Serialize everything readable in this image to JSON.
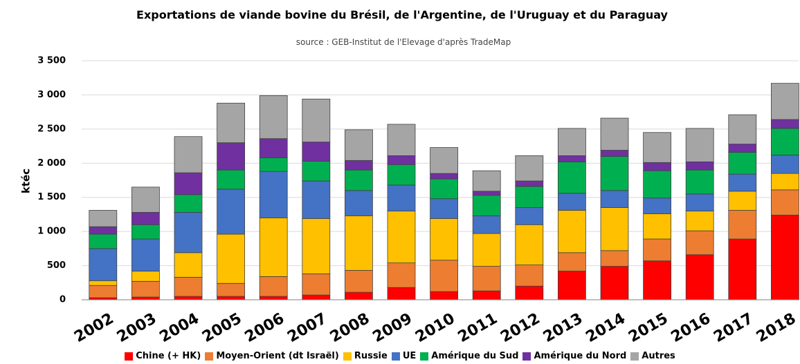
{
  "chart_data": {
    "type": "stacked_bar",
    "title": "Exportations de viande bovine du Brésil, de l'Argentine, de l'Uruguay et du Paraguay",
    "subtitle": "source : GEB-Institut de l'Elevage d'après TradeMap",
    "y_label": "ktéc",
    "categories": [
      "2002",
      "2003",
      "2004",
      "2005",
      "2006",
      "2007",
      "2008",
      "2009",
      "2010",
      "2011",
      "2012",
      "2013",
      "2014",
      "2015",
      "2016",
      "2017",
      "2018"
    ],
    "series": [
      {
        "name": "Chine (+ HK)",
        "color": "#ff0000",
        "values": [
          30,
          40,
          50,
          50,
          50,
          70,
          110,
          180,
          120,
          130,
          200,
          420,
          490,
          570,
          660,
          890,
          1240
        ]
      },
      {
        "name": "Moyen-Orient (dt Israël)",
        "color": "#ed7d31",
        "values": [
          180,
          230,
          280,
          190,
          290,
          310,
          320,
          360,
          460,
          360,
          310,
          270,
          230,
          320,
          350,
          420,
          370
        ]
      },
      {
        "name": "Russie",
        "color": "#ffc000",
        "values": [
          70,
          150,
          360,
          720,
          860,
          810,
          800,
          760,
          610,
          480,
          590,
          620,
          630,
          370,
          290,
          280,
          240
        ]
      },
      {
        "name": "UE",
        "color": "#4472c4",
        "values": [
          470,
          470,
          590,
          660,
          680,
          550,
          370,
          380,
          290,
          260,
          250,
          250,
          250,
          230,
          250,
          250,
          270
        ]
      },
      {
        "name": "Amérique du Sud",
        "color": "#00b050",
        "values": [
          210,
          210,
          260,
          280,
          200,
          290,
          300,
          300,
          290,
          300,
          310,
          460,
          500,
          400,
          350,
          320,
          390
        ]
      },
      {
        "name": "Amérique du Nord",
        "color": "#7030a0",
        "values": [
          110,
          180,
          320,
          400,
          280,
          280,
          140,
          130,
          80,
          60,
          80,
          90,
          90,
          120,
          120,
          120,
          130
        ]
      },
      {
        "name": "Autres",
        "color": "#a5a5a5",
        "values": [
          240,
          370,
          530,
          580,
          630,
          630,
          450,
          460,
          380,
          300,
          370,
          400,
          470,
          440,
          490,
          430,
          530
        ]
      }
    ],
    "ylim": [
      0,
      3500
    ],
    "yticks": [
      0,
      {
        "value": 500,
        "label": "500"
      },
      {
        "value": 1000,
        "label": "1 000"
      },
      {
        "value": 1500,
        "label": "1 500"
      },
      {
        "value": 2000,
        "label": "2 000"
      },
      {
        "value": 2500,
        "label": "2 500"
      },
      {
        "value": 3000,
        "label": "3 000"
      },
      {
        "value": 3500,
        "label": "3 500"
      }
    ],
    "grid": true,
    "legend": "bottom"
  }
}
